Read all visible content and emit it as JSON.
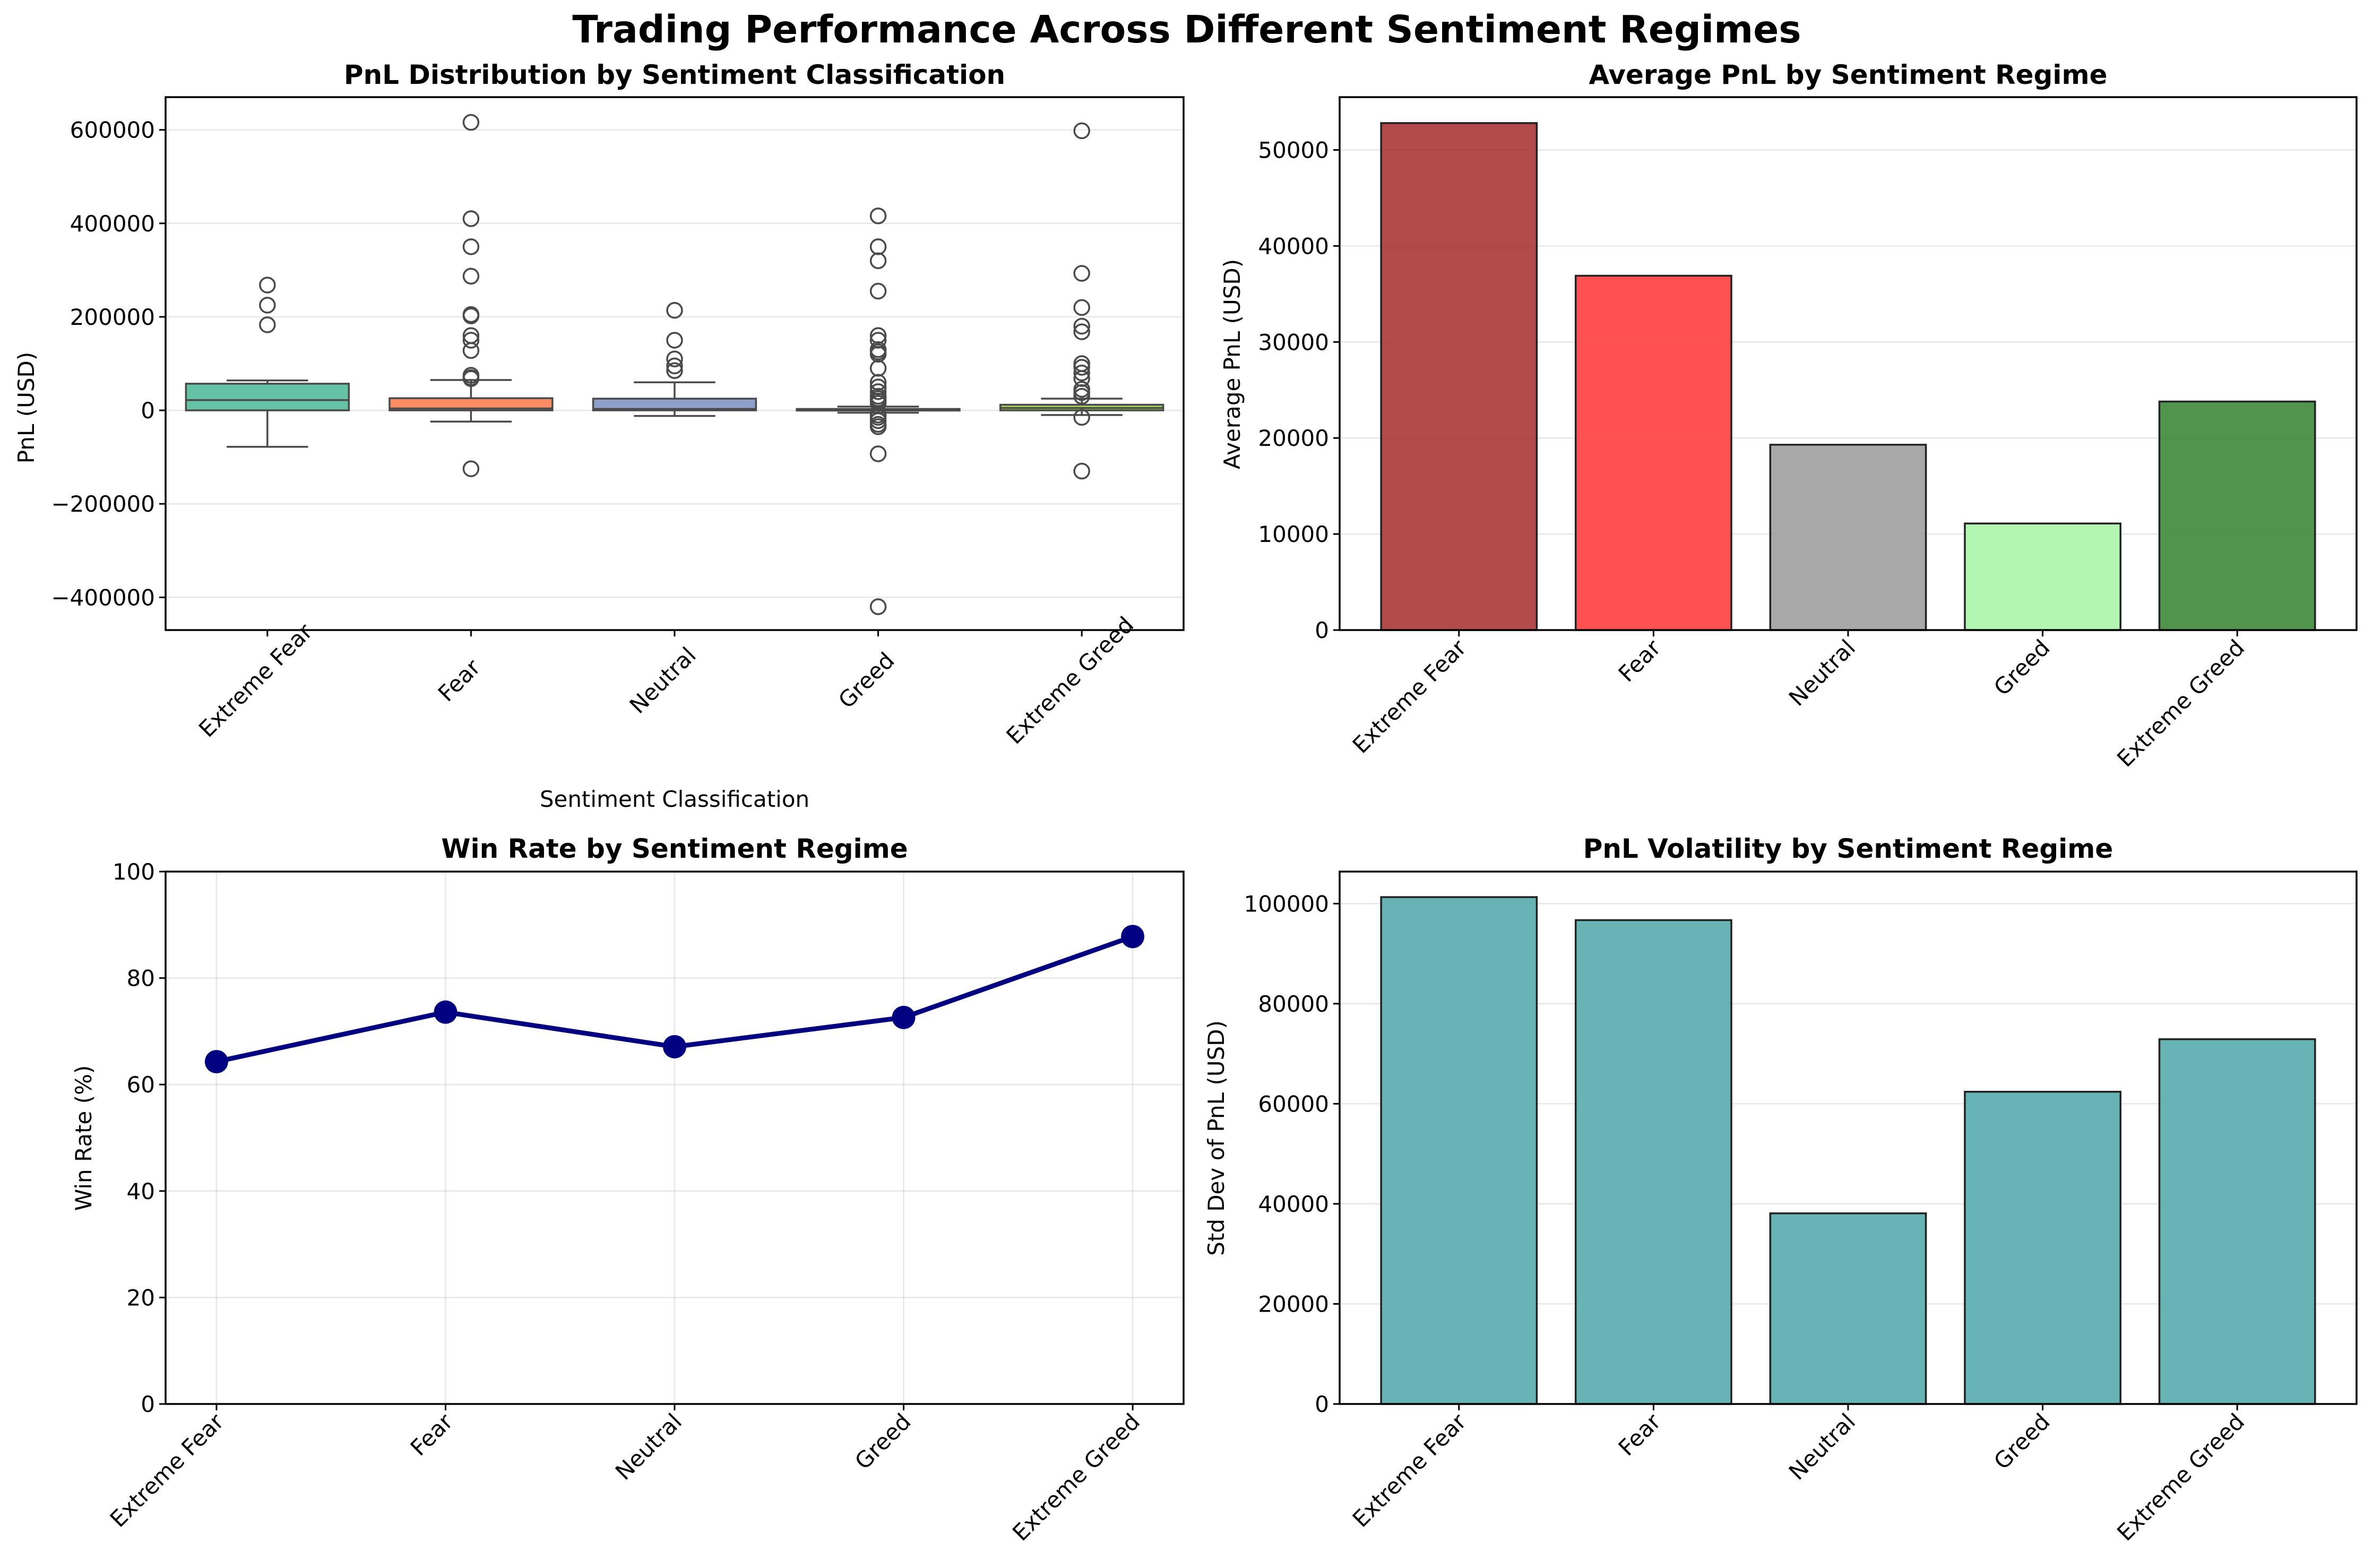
{
  "figure": {
    "suptitle": "Trading Performance Across Different Sentiment Regimes"
  },
  "chart_data": [
    {
      "type": "box",
      "title": "PnL Distribution by Sentiment Classification",
      "xlabel": "Sentiment Classification",
      "ylabel": "PnL (USD)",
      "categories": [
        "Extreme Fear",
        "Fear",
        "Neutral",
        "Greed",
        "Extreme Greed"
      ],
      "ylim": [
        -470000,
        670000
      ],
      "yticks": [
        -400000,
        -200000,
        0,
        200000,
        400000,
        600000
      ],
      "ytick_labels": [
        "−400000",
        "−200000",
        "0",
        "200000",
        "400000",
        "600000"
      ],
      "grid": "y",
      "colors": [
        "#66c2a5",
        "#fc8d62",
        "#8da0cb",
        "#e78ac3",
        "#a6d854"
      ],
      "boxes": [
        {
          "name": "Extreme Fear",
          "whisker_low": -78000,
          "q1": 0,
          "median": 22000,
          "q3": 57000,
          "whisker_high": 64000,
          "outliers": [
            268000,
            225000,
            183000
          ]
        },
        {
          "name": "Fear",
          "whisker_low": -24000,
          "q1": 0,
          "median": 4000,
          "q3": 26000,
          "whisker_high": 65000,
          "outliers": [
            616000,
            410000,
            350000,
            287000,
            205000,
            202000,
            160000,
            150000,
            128000,
            75000,
            70000,
            68000,
            -125000
          ]
        },
        {
          "name": "Neutral",
          "whisker_low": -12000,
          "q1": 0,
          "median": 3000,
          "q3": 25000,
          "whisker_high": 60000,
          "outliers": [
            214000,
            150000,
            110000,
            95000,
            85000
          ]
        },
        {
          "name": "Greed",
          "whisker_low": -5000,
          "q1": 0,
          "median": 1000,
          "q3": 3000,
          "whisker_high": 8000,
          "outliers": [
            416000,
            350000,
            320000,
            255000,
            160000,
            150000,
            130000,
            125000,
            120000,
            90000,
            60000,
            50000,
            40000,
            30000,
            25000,
            20000,
            15000,
            -10000,
            -15000,
            -22000,
            -30000,
            -35000,
            -93000,
            -420000
          ]
        },
        {
          "name": "Extreme Greed",
          "whisker_low": -10000,
          "q1": 0,
          "median": 5000,
          "q3": 12000,
          "whisker_high": 25000,
          "outliers": [
            598000,
            293000,
            220000,
            180000,
            168000,
            100000,
            92000,
            80000,
            68000,
            45000,
            38000,
            30000,
            -15000,
            -130000
          ]
        }
      ]
    },
    {
      "type": "bar",
      "title": "Average PnL by Sentiment Regime",
      "xlabel": "",
      "ylabel": "Average PnL (USD)",
      "categories": [
        "Extreme Fear",
        "Fear",
        "Neutral",
        "Greed",
        "Extreme Greed"
      ],
      "values": [
        52800,
        36900,
        19300,
        11100,
        23800
      ],
      "colors": [
        "#a52a2a",
        "#ff3333",
        "#999999",
        "#a5f5a5",
        "#32812f"
      ],
      "ylim": [
        0,
        55500
      ],
      "yticks": [
        0,
        10000,
        20000,
        30000,
        40000,
        50000
      ],
      "ytick_labels": [
        "0",
        "10000",
        "20000",
        "30000",
        "40000",
        "50000"
      ],
      "grid": "y"
    },
    {
      "type": "line",
      "title": "Win Rate by Sentiment Regime",
      "xlabel": "",
      "ylabel": "Win Rate (%)",
      "categories": [
        "Extreme Fear",
        "Fear",
        "Neutral",
        "Greed",
        "Extreme Greed"
      ],
      "values": [
        64.3,
        73.6,
        67.1,
        72.6,
        87.8
      ],
      "color": "#000080",
      "ylim": [
        0,
        100
      ],
      "yticks": [
        0,
        20,
        40,
        60,
        80,
        100
      ],
      "ytick_labels": [
        "0",
        "20",
        "40",
        "60",
        "80",
        "100"
      ],
      "grid": "both"
    },
    {
      "type": "bar",
      "title": "PnL Volatility by Sentiment Regime",
      "xlabel": "",
      "ylabel": "Std Dev of PnL (USD)",
      "categories": [
        "Extreme Fear",
        "Fear",
        "Neutral",
        "Greed",
        "Extreme Greed"
      ],
      "values": [
        101300,
        96700,
        38100,
        62400,
        72900
      ],
      "colors": [
        "#4da6a6",
        "#4da6a6",
        "#4da6a6",
        "#4da6a6",
        "#4da6a6"
      ],
      "ylim": [
        0,
        106400
      ],
      "yticks": [
        0,
        20000,
        40000,
        60000,
        80000,
        100000
      ],
      "ytick_labels": [
        "0",
        "20000",
        "40000",
        "60000",
        "80000",
        "100000"
      ],
      "grid": "y"
    }
  ]
}
